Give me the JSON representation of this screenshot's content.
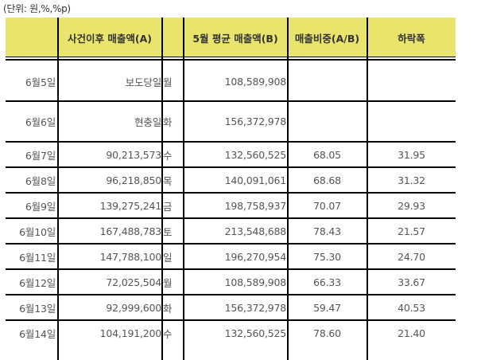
{
  "unit_label": "(단위: 원,%,%p)",
  "header": {
    "col_date": "",
    "col_a": "사건이후 매출액(A)",
    "col_day": "",
    "col_b": "5월 평균 매출액(B)",
    "col_ratio": "매출비중(A/B)",
    "col_drop": "하락폭"
  },
  "colors": {
    "header_bg": "#e8e46c",
    "border": "#000000",
    "text": "#555555"
  },
  "rows": [
    {
      "date": "6월5일",
      "sales_a": "보도당일",
      "day": "월",
      "avg_b": "108,589,908",
      "ratio": "",
      "drop": ""
    },
    {
      "date": "6월6일",
      "sales_a": "현충일",
      "day": "화",
      "avg_b": "156,372,978",
      "ratio": "",
      "drop": ""
    },
    {
      "date": "6월7일",
      "sales_a": "90,213,573",
      "day": "수",
      "avg_b": "132,560,525",
      "ratio": "68.05",
      "drop": "31.95"
    },
    {
      "date": "6월8일",
      "sales_a": "96,218,850",
      "day": "목",
      "avg_b": "140,091,061",
      "ratio": "68.68",
      "drop": "31.32"
    },
    {
      "date": "6월9일",
      "sales_a": "139,275,241",
      "day": "금",
      "avg_b": "198,758,937",
      "ratio": "70.07",
      "drop": "29.93"
    },
    {
      "date": "6월10일",
      "sales_a": "167,488,783",
      "day": "토",
      "avg_b": "213,548,688",
      "ratio": "78.43",
      "drop": "21.57"
    },
    {
      "date": "6월11일",
      "sales_a": "147,788,100",
      "day": "일",
      "avg_b": "196,270,954",
      "ratio": "75.30",
      "drop": "24.70"
    },
    {
      "date": "6월12일",
      "sales_a": "72,025,504",
      "day": "월",
      "avg_b": "108,589,908",
      "ratio": "66.33",
      "drop": "33.67"
    },
    {
      "date": "6월13일",
      "sales_a": "92,999,600",
      "day": "화",
      "avg_b": "156,372,978",
      "ratio": "59.47",
      "drop": "40.53"
    },
    {
      "date": "6월14일",
      "sales_a": "104,191,200",
      "day": "수",
      "avg_b": "132,560,525",
      "ratio": "78.60",
      "drop": "21.40"
    }
  ]
}
